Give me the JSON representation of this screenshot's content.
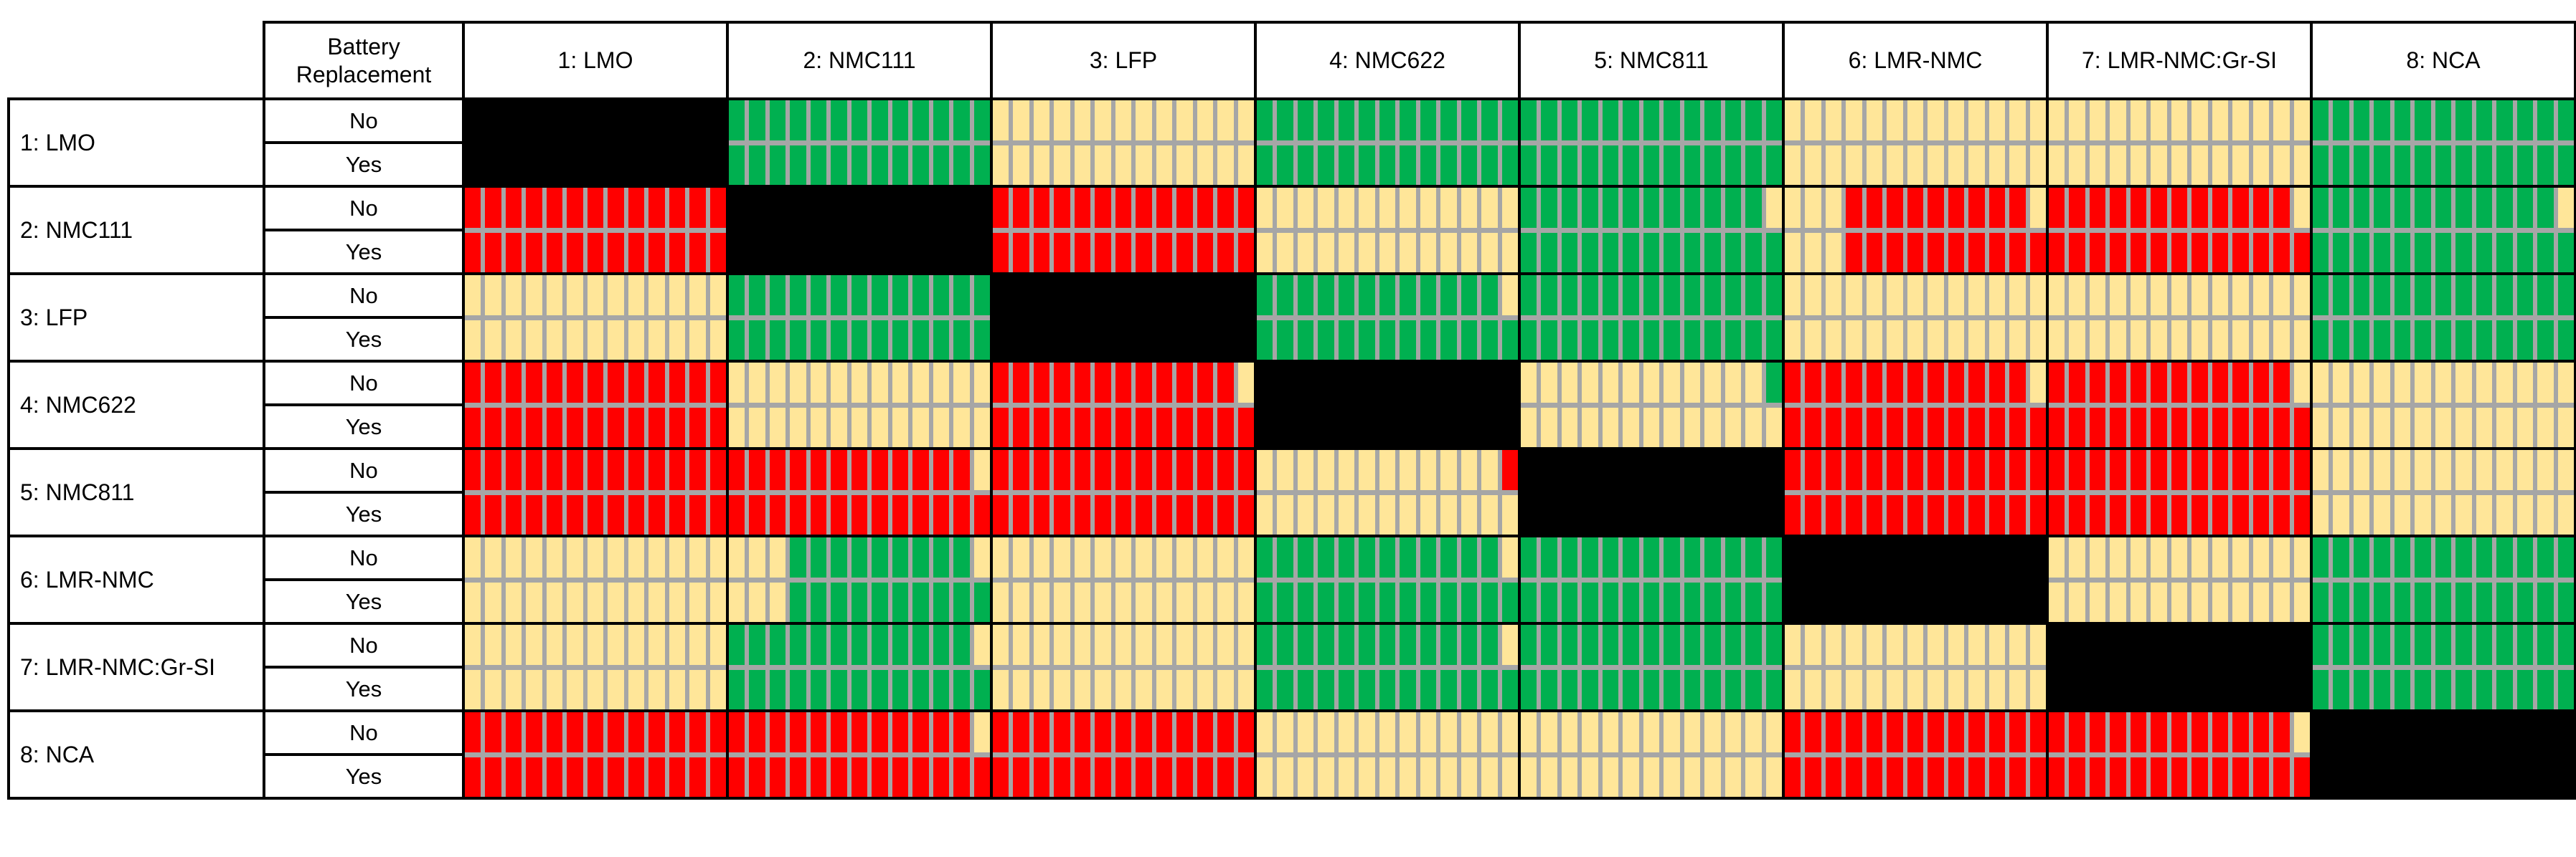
{
  "figure": {
    "battery_header_line1": "Battery",
    "battery_header_line2": "Replacement"
  },
  "chart_data": {
    "type": "heatmap",
    "title": "",
    "battery_header": "Battery Replacement",
    "columns": [
      "1: LMO",
      "2: NMC111",
      "3: LFP",
      "4: NMC622",
      "5: NMC811",
      "6: LMR-NMC",
      "7: LMR-NMC:Gr-SI",
      "8: NCA"
    ],
    "row_labels": [
      "1: LMO",
      "2: NMC111",
      "3: LFP",
      "4: NMC622",
      "5: NMC811",
      "6: LMR-NMC",
      "7: LMR-NMC:Gr-SI",
      "8: NCA"
    ],
    "sub_row_labels": [
      "No",
      "Yes"
    ],
    "stripes_per_cell": 13,
    "color_key": {
      "G": "#00B050",
      "R": "#FF0000",
      "T": "#FFE699",
      "K": "#000000"
    },
    "grid_line_color": "#A6A6A6",
    "border_color": "#000000",
    "cells": [
      [
        "K",
        {
          "no": "GGGGGGGGGGGGG",
          "yes": "GGGGGGGGGGGGG"
        },
        {
          "no": "TTTTTTTTTTTTT",
          "yes": "TTTTTTTTTTTTT"
        },
        {
          "no": "GGGGGGGGGGGGG",
          "yes": "GGGGGGGGGGGGG"
        },
        {
          "no": "GGGGGGGGGGGGG",
          "yes": "GGGGGGGGGGGGG"
        },
        {
          "no": "TTTTTTTTTTTTT",
          "yes": "TTTTTTTTTTTTT"
        },
        {
          "no": "TTTTTTTTTTTTT",
          "yes": "TTTTTTTTTTTTT"
        },
        {
          "no": "GGGGGGGGGGGGG",
          "yes": "GGGGGGGGGGGGG"
        }
      ],
      [
        {
          "no": "RRRRRRRRRRRRR",
          "yes": "RRRRRRRRRRRRR"
        },
        "K",
        {
          "no": "RRRRRRRRRRRRR",
          "yes": "RRRRRRRRRRRRR"
        },
        {
          "no": "TTTTTTTTTTTTT",
          "yes": "TTTTTTTTTTTTT"
        },
        {
          "no": "GGGGGGGGGGGGT",
          "yes": "GGGGGGGGGGGGG"
        },
        {
          "no": "TTTRRRRRRRRRT",
          "yes": "TTTRRRRRRRRRR"
        },
        {
          "no": "RRRRRRRRRRRRT",
          "yes": "RRRRRRRRRRRRR"
        },
        {
          "no": "GGGGGGGGGGGGT",
          "yes": "GGGGGGGGGGGGG"
        }
      ],
      [
        {
          "no": "TTTTTTTTTTTTT",
          "yes": "TTTTTTTTTTTTT"
        },
        {
          "no": "GGGGGGGGGGGGG",
          "yes": "GGGGGGGGGGGGG"
        },
        "K",
        {
          "no": "GGGGGGGGGGGGT",
          "yes": "GGGGGGGGGGGGG"
        },
        {
          "no": "GGGGGGGGGGGGG",
          "yes": "GGGGGGGGGGGGG"
        },
        {
          "no": "TTTTTTTTTTTTT",
          "yes": "TTTTTTTTTTTTT"
        },
        {
          "no": "TTTTTTTTTTTTT",
          "yes": "TTTTTTTTTTTTT"
        },
        {
          "no": "GGGGGGGGGGGGG",
          "yes": "GGGGGGGGGGGGG"
        }
      ],
      [
        {
          "no": "RRRRRRRRRRRRR",
          "yes": "RRRRRRRRRRRRR"
        },
        {
          "no": "TTTTTTTTTTTTT",
          "yes": "TTTTTTTTTTTTT"
        },
        {
          "no": "RRRRRRRRRRRRT",
          "yes": "RRRRRRRRRRRRR"
        },
        "K",
        {
          "no": "TTTTTTTTTTTTG",
          "yes": "TTTTTTTTTTTTT"
        },
        {
          "no": "RRRRRRRRRRRRT",
          "yes": "RRRRRRRRRRRRR"
        },
        {
          "no": "RRRRRRRRRRRRT",
          "yes": "RRRRRRRRRRRRR"
        },
        {
          "no": "TTTTTTTTTTTTT",
          "yes": "TTTTTTTTTTTTT"
        }
      ],
      [
        {
          "no": "RRRRRRRRRRRRR",
          "yes": "RRRRRRRRRRRRR"
        },
        {
          "no": "RRRRRRRRRRRRT",
          "yes": "RRRRRRRRRRRRR"
        },
        {
          "no": "RRRRRRRRRRRRR",
          "yes": "RRRRRRRRRRRRR"
        },
        {
          "no": "TTTTTTTTTTTTR",
          "yes": "TTTTTTTTTTTTT"
        },
        "K",
        {
          "no": "RRRRRRRRRRRRR",
          "yes": "RRRRRRRRRRRRR"
        },
        {
          "no": "RRRRRRRRRRRRR",
          "yes": "RRRRRRRRRRRRR"
        },
        {
          "no": "TTTTTTTTTTTTT",
          "yes": "TTTTTTTTTTTTT"
        }
      ],
      [
        {
          "no": "TTTTTTTTTTTTT",
          "yes": "TTTTTTTTTTTTT"
        },
        {
          "no": "TTTGGGGGGGGGT",
          "yes": "TTTGGGGGGGGGG"
        },
        {
          "no": "TTTTTTTTTTTTT",
          "yes": "TTTTTTTTTTTTT"
        },
        {
          "no": "GGGGGGGGGGGGT",
          "yes": "GGGGGGGGGGGGG"
        },
        {
          "no": "GGGGGGGGGGGGG",
          "yes": "GGGGGGGGGGGGG"
        },
        "K",
        {
          "no": "TTTTTTTTTTTTT",
          "yes": "TTTTTTTTTTTTT"
        },
        {
          "no": "GGGGGGGGGGGGG",
          "yes": "GGGGGGGGGGGGG"
        }
      ],
      [
        {
          "no": "TTTTTTTTTTTTT",
          "yes": "TTTTTTTTTTTTT"
        },
        {
          "no": "GGGGGGGGGGGGT",
          "yes": "GGGGGGGGGGGGG"
        },
        {
          "no": "TTTTTTTTTTTTT",
          "yes": "TTTTTTTTTTTTT"
        },
        {
          "no": "GGGGGGGGGGGGT",
          "yes": "GGGGGGGGGGGGG"
        },
        {
          "no": "GGGGGGGGGGGGG",
          "yes": "GGGGGGGGGGGGG"
        },
        {
          "no": "TTTTTTTTTTTTT",
          "yes": "TTTTTTTTTTTTT"
        },
        "K",
        {
          "no": "GGGGGGGGGGGGG",
          "yes": "GGGGGGGGGGGGG"
        }
      ],
      [
        {
          "no": "RRRRRRRRRRRRR",
          "yes": "RRRRRRRRRRRRR"
        },
        {
          "no": "RRRRRRRRRRRRT",
          "yes": "RRRRRRRRRRRRR"
        },
        {
          "no": "RRRRRRRRRRRRR",
          "yes": "RRRRRRRRRRRRR"
        },
        {
          "no": "TTTTTTTTTTTTT",
          "yes": "TTTTTTTTTTTTT"
        },
        {
          "no": "TTTTTTTTTTTTT",
          "yes": "TTTTTTTTTTTTT"
        },
        {
          "no": "RRRRRRRRRRRRR",
          "yes": "RRRRRRRRRRRRR"
        },
        {
          "no": "RRRRRRRRRRRRT",
          "yes": "RRRRRRRRRRRRR"
        },
        "K"
      ]
    ]
  }
}
